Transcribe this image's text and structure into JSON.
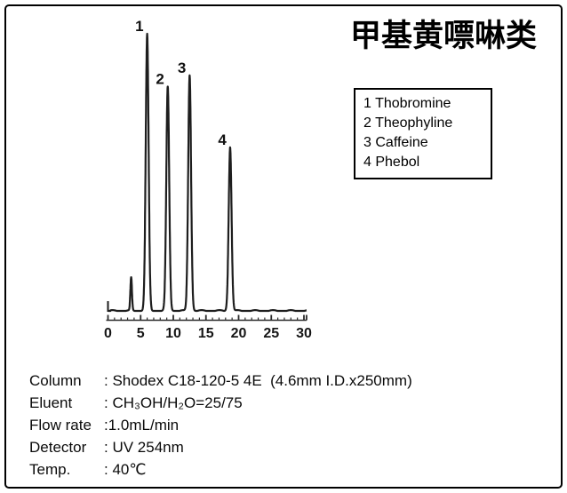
{
  "title": "甲基黄嘌啉类",
  "legend": {
    "items": [
      {
        "num": "1",
        "name": "Thobromine"
      },
      {
        "num": "2",
        "name": "Theophyline"
      },
      {
        "num": "3",
        "name": "Caffeine"
      },
      {
        "num": "4",
        "name": "Phebol"
      }
    ]
  },
  "conditions": {
    "rows": [
      {
        "label": "Column",
        "value": ": Shodex C18-120-5 4E  (4.6mm I.D.x250mm)"
      },
      {
        "label": "Eluent",
        "value": ": CH₃OH/H₂O=25/75"
      },
      {
        "label": "Flow rate",
        "value": ":1.0mL/min"
      },
      {
        "label": "Detector",
        "value": ": UV 254nm"
      },
      {
        "label": "Temp.",
        "value": ": 40℃"
      }
    ]
  },
  "chart_data": {
    "type": "line",
    "title": "甲基黄嘌啉类",
    "xlabel": "",
    "ylabel": "",
    "xlim": [
      0,
      30.4
    ],
    "x_ticks": [
      0,
      5,
      10,
      15,
      20,
      25,
      30
    ],
    "x_minor_tick_step": 1,
    "grid": false,
    "legend_position": "right",
    "solvent_front": {
      "retention_min": 3.55,
      "height_rel": 0.12
    },
    "peaks": [
      {
        "id": "1",
        "name": "Thobromine",
        "retention_min": 6.0,
        "height_rel": 1.0
      },
      {
        "id": "2",
        "name": "Theophyline",
        "retention_min": 9.15,
        "height_rel": 0.81
      },
      {
        "id": "3",
        "name": "Caffeine",
        "retention_min": 12.5,
        "height_rel": 0.85
      },
      {
        "id": "4",
        "name": "Phebol",
        "retention_min": 18.7,
        "height_rel": 0.59
      }
    ],
    "trace_color": "#1e1e1e",
    "axis_color": "#2b2b2b"
  }
}
